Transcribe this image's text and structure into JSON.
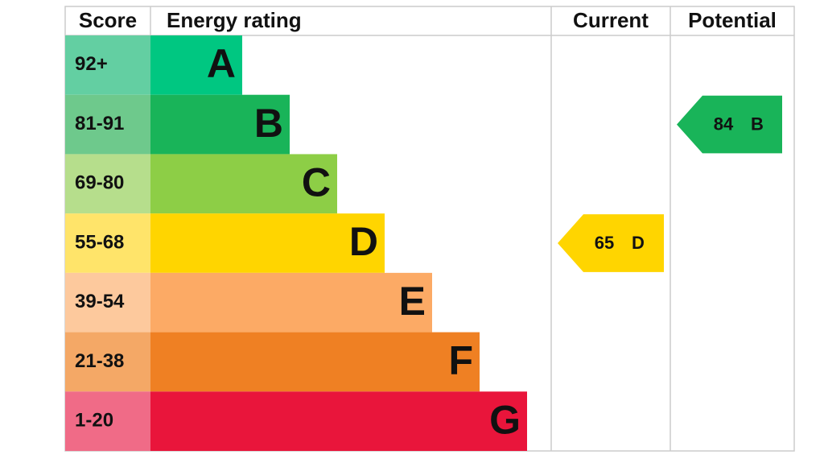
{
  "header": {
    "score": "Score",
    "rating": "Energy rating",
    "current": "Current",
    "potential": "Potential"
  },
  "bands": [
    {
      "score": "92+",
      "letter": "A",
      "color": "#00c781",
      "score_color": "#63cfa2"
    },
    {
      "score": "81-91",
      "letter": "B",
      "color": "#19b459",
      "score_color": "#6ec98c"
    },
    {
      "score": "69-80",
      "letter": "C",
      "color": "#8dce46",
      "score_color": "#b6de8c"
    },
    {
      "score": "55-68",
      "letter": "D",
      "color": "#ffd500",
      "score_color": "#ffe46a"
    },
    {
      "score": "39-54",
      "letter": "E",
      "color": "#fcaa65",
      "score_color": "#fdc99d"
    },
    {
      "score": "21-38",
      "letter": "F",
      "color": "#ef8023",
      "score_color": "#f4a866"
    },
    {
      "score": "1-20",
      "letter": "G",
      "color": "#e9153b",
      "score_color": "#f06b87"
    }
  ],
  "current": {
    "value": 65,
    "letter": "D"
  },
  "potential": {
    "value": 84,
    "letter": "B"
  }
}
